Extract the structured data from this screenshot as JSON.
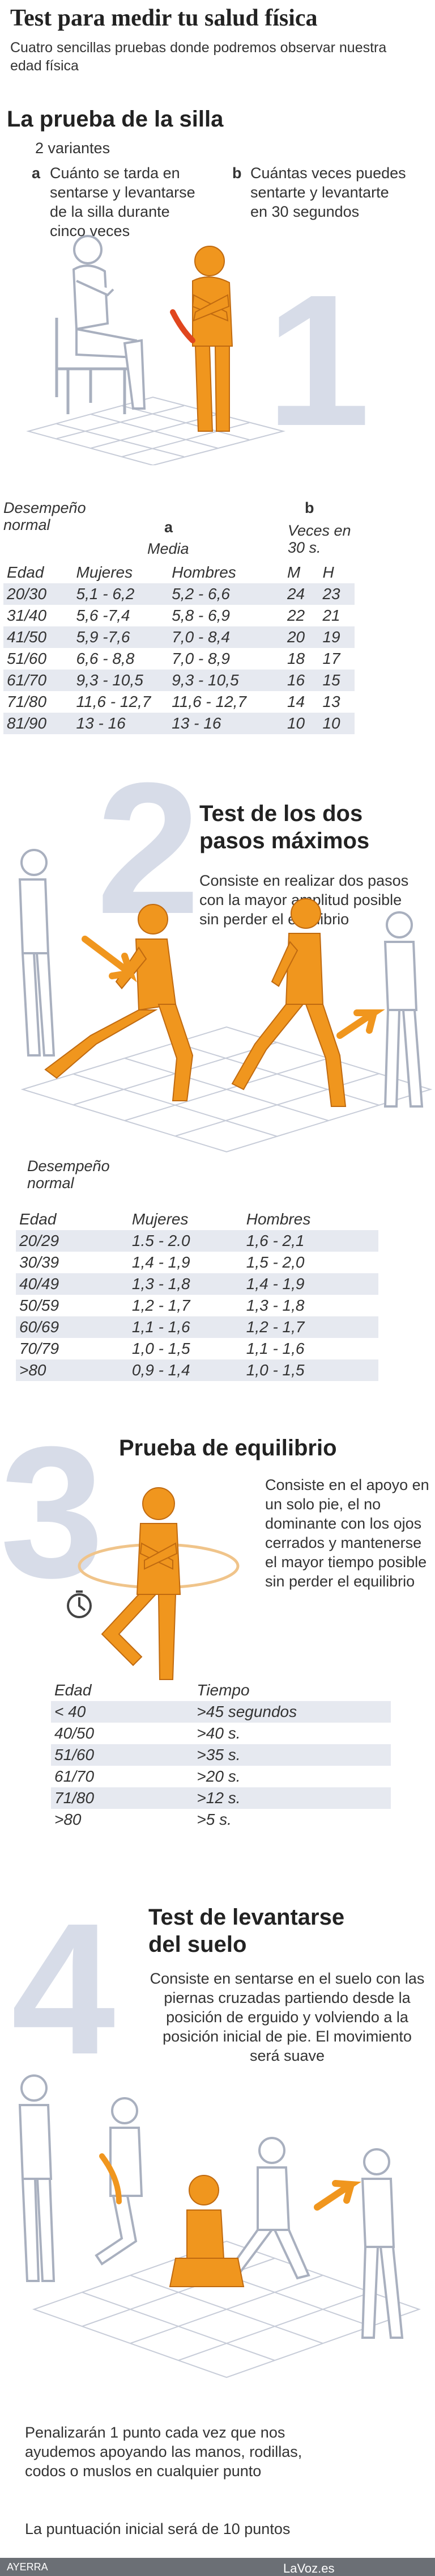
{
  "header": {
    "title": "Test para medir tu salud física",
    "subtitle": "Cuatro sencillas pruebas donde podremos observar nuestra edad física"
  },
  "test1": {
    "heading": "La prueba de la silla",
    "variants": "2 variantes",
    "a_letter": "a",
    "a_text": "Cuánto se tarda en sentarse y levantarse de la silla durante cinco veces",
    "b_letter": "b",
    "b_text": "Cuántas veces puedes sentarte y levantarte en 30 segundos",
    "number": "1",
    "table": {
      "desempeno": "Desempeño normal",
      "col_a": "a",
      "col_b": "b",
      "media": "Media",
      "veces": "Veces en 30 s.",
      "edad": "Edad",
      "mujeres": "Mujeres",
      "hombres": "Hombres",
      "m": "M",
      "h": "H",
      "rows": [
        {
          "edad": "20/30",
          "mujeres": "5,1 - 6,2",
          "hombres": "5,2 - 6,6",
          "m": "24",
          "h": "23"
        },
        {
          "edad": "31/40",
          "mujeres": "5,6 -7,4",
          "hombres": "5,8 - 6,9",
          "m": "22",
          "h": "21"
        },
        {
          "edad": "41/50",
          "mujeres": "5,9 -7,6",
          "hombres": "7,0 - 8,4",
          "m": "20",
          "h": "19"
        },
        {
          "edad": "51/60",
          "mujeres": "6,6 - 8,8",
          "hombres": "7,0 - 8,9",
          "m": "18",
          "h": "17"
        },
        {
          "edad": "61/70",
          "mujeres": "9,3 - 10,5",
          "hombres": "9,3 - 10,5",
          "m": "16",
          "h": "15"
        },
        {
          "edad": "71/80",
          "mujeres": "11,6 - 12,7",
          "hombres": "11,6 - 12,7",
          "m": "14",
          "h": "13"
        },
        {
          "edad": "81/90",
          "mujeres": "13 - 16",
          "hombres": "13 - 16",
          "m": "10",
          "h": "10"
        }
      ]
    }
  },
  "test2": {
    "number": "2",
    "heading": "Test de los dos pasos máximos",
    "text": "Consiste en realizar dos pasos con la mayor amplitud posible sin perder el equilibrio",
    "table": {
      "desempeno": "Desempeño normal",
      "edad": "Edad",
      "mujeres": "Mujeres",
      "hombres": "Hombres",
      "rows": [
        {
          "edad": "20/29",
          "mujeres": "1.5 - 2.0",
          "hombres": "1,6 - 2,1"
        },
        {
          "edad": "30/39",
          "mujeres": "1,4 - 1,9",
          "hombres": "1,5 - 2,0"
        },
        {
          "edad": "40/49",
          "mujeres": "1,3 - 1,8",
          "hombres": "1,4 - 1,9"
        },
        {
          "edad": "50/59",
          "mujeres": "1,2 - 1,7",
          "hombres": "1,3 - 1,8"
        },
        {
          "edad": "60/69",
          "mujeres": "1,1 - 1,6",
          "hombres": "1,2 - 1,7"
        },
        {
          "edad": "70/79",
          "mujeres": "1,0 - 1,5",
          "hombres": "1,1 - 1,6"
        },
        {
          "edad": ">80",
          "mujeres": "0,9 - 1,4",
          "hombres": "1,0 - 1,5"
        }
      ]
    }
  },
  "test3": {
    "number": "3",
    "heading": "Prueba de equilibrio",
    "text": "Consiste en el apoyo en un solo pie, el no dominante con los ojos cerrados y mantenerse el mayor tiempo posible sin perder el equilibrio",
    "table": {
      "edad": "Edad",
      "tiempo": "Tiempo",
      "rows": [
        {
          "edad": "< 40",
          "tiempo": ">45 segundos"
        },
        {
          "edad": "40/50",
          "tiempo": ">40 s."
        },
        {
          "edad": "51/60",
          "tiempo": ">35 s."
        },
        {
          "edad": "61/70",
          "tiempo": ">20 s."
        },
        {
          "edad": "71/80",
          "tiempo": ">12 s."
        },
        {
          "edad": ">80",
          "tiempo": ">5 s."
        }
      ]
    }
  },
  "test4": {
    "number": "4",
    "heading": "Test de levantarse del suelo",
    "text": "Consiste en sentarse en el suelo con las piernas cruzadas partiendo desde la posición de erguido y volviendo a la posición inicial de pie. El movimiento será suave",
    "penalty": "Penalizarán 1 punto cada vez que nos ayudemos apoyando las manos, rodillas, codos o muslos en cualquier punto",
    "initial": "La puntuación inicial será de 10 puntos"
  },
  "footer": {
    "credit": "AYERRA",
    "brand": "LaVoz.es"
  },
  "colors": {
    "figure_orange": "#f0961e",
    "figure_outline": "#a9b0bf",
    "number_gray": "#d7dce8",
    "stripe": "#e6e9f0"
  }
}
